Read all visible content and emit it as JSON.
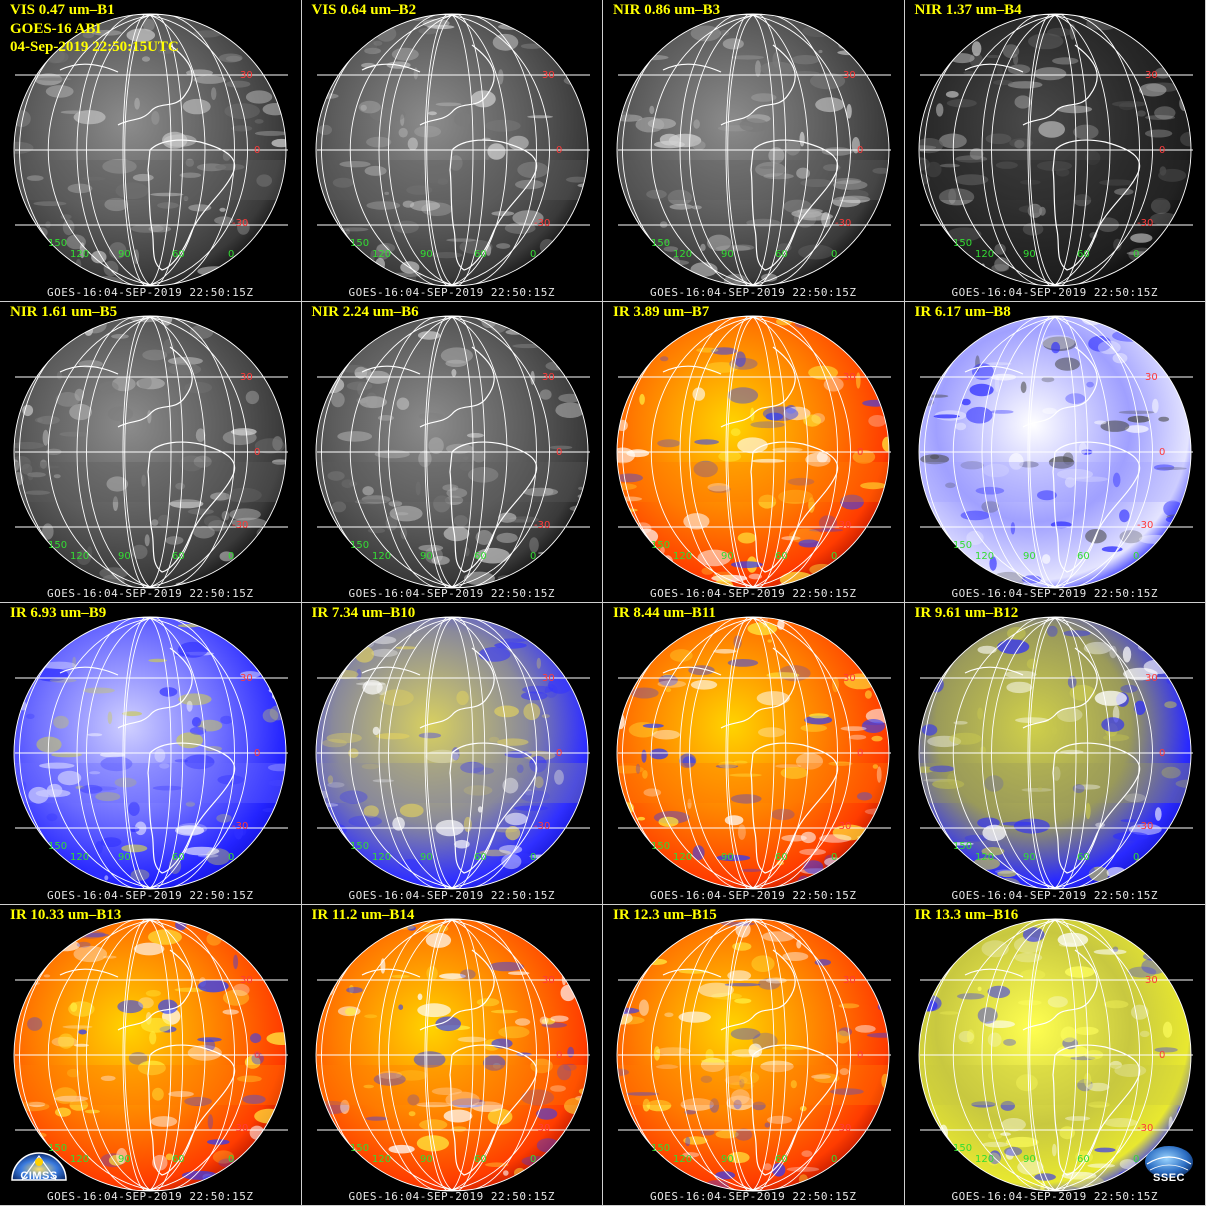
{
  "header": {
    "satellite": "GOES-16 ABI",
    "datetime": "04-Sep-2019 22:50:15UTC"
  },
  "timestamp": "GOES-16:04-SEP-2019 22:50:15Z",
  "grid_labels": {
    "lat": [
      "30",
      "0",
      "-30"
    ],
    "lon": [
      "150",
      "120",
      "90",
      "60",
      "0"
    ]
  },
  "panels": [
    {
      "title": "VIS 0.47 um–B1",
      "style": "vis"
    },
    {
      "title": "VIS 0.64 um–B2",
      "style": "vis"
    },
    {
      "title": "NIR 0.86 um–B3",
      "style": "vis"
    },
    {
      "title": "NIR 1.37 um–B4",
      "style": "dark"
    },
    {
      "title": "NIR 1.61 um–B5",
      "style": "vis"
    },
    {
      "title": "NIR 2.24 um–B6",
      "style": "vis"
    },
    {
      "title": "IR 3.89 um–B7",
      "style": "ir"
    },
    {
      "title": "IR 6.17 um–B8",
      "style": "wv_white"
    },
    {
      "title": "IR 6.93 um–B9",
      "style": "wv_blue"
    },
    {
      "title": "IR 7.34 um–B10",
      "style": "wv_yellow"
    },
    {
      "title": "IR 8.44 um–B11",
      "style": "ir"
    },
    {
      "title": "IR 9.61 um–B12",
      "style": "ozone"
    },
    {
      "title": "IR 10.33 um–B13",
      "style": "ir"
    },
    {
      "title": "IR 11.2 um–B14",
      "style": "ir"
    },
    {
      "title": "IR 12.3 um–B15",
      "style": "ir"
    },
    {
      "title": "IR 13.3 um–B16",
      "style": "co2"
    }
  ],
  "logos": {
    "left": "CIMSS",
    "right": "SSEC"
  },
  "colors": {
    "title": "#ffff00",
    "lat_label": "#ff3a3a",
    "lon_label": "#33dd33",
    "gridline": "#ffffff"
  }
}
